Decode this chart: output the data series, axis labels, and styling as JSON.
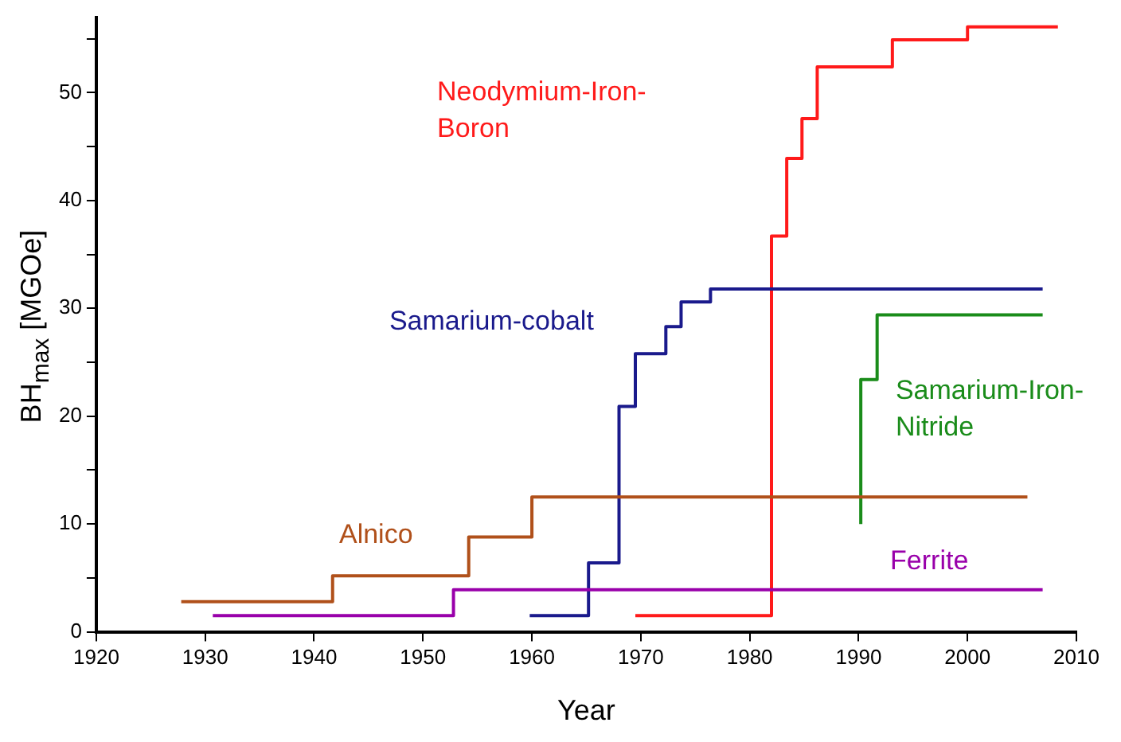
{
  "chart_data": {
    "type": "step",
    "xlabel": "Year",
    "ylabel": "BH$_{max}$ [MGOe]",
    "xlim": [
      1920,
      2010
    ],
    "ylim": [
      0,
      57
    ],
    "xticks": [
      1920,
      1930,
      1940,
      1950,
      1960,
      1970,
      1980,
      1990,
      2000,
      2010
    ],
    "yticks": [
      0,
      {
        "value": 5,
        "label": null
      },
      10,
      {
        "value": 15,
        "label": null
      },
      20,
      {
        "value": 25,
        "label": null
      },
      30,
      {
        "value": 35,
        "label": null
      },
      40,
      {
        "value": 45,
        "label": null
      },
      50,
      {
        "value": 55,
        "label": null
      }
    ],
    "grid": false,
    "legend": false,
    "marker": "none",
    "line_style": "solid",
    "series": [
      {
        "name": "Alnico",
        "color": "#b0501a",
        "x": [
          1927.8,
          1941.7,
          1954.2,
          1960,
          2005.5
        ],
        "values": [
          2.8,
          5.2,
          8.8,
          12.5,
          12.5
        ]
      },
      {
        "name": "Ferrite",
        "color": "#9900aa",
        "x": [
          1930.7,
          1952.8,
          2006.9
        ],
        "values": [
          1.5,
          3.9,
          3.9
        ]
      },
      {
        "name": "Samarium-cobalt",
        "color": "#1a1a8c",
        "x": [
          1959.8,
          1965.2,
          1968,
          1969.5,
          1972.3,
          1973.7,
          1976.4,
          2006.9
        ],
        "values": [
          1.5,
          6.4,
          20.9,
          25.8,
          28.3,
          30.6,
          31.8,
          31.8
        ]
      },
      {
        "name": "Neodymium-Iron-Boron",
        "color": "#ff1a1a",
        "x": [
          1969.5,
          1982,
          1983.4,
          1984.8,
          1986.2,
          1993.1,
          2000,
          2008.3
        ],
        "values": [
          1.5,
          36.7,
          43.9,
          47.6,
          52.4,
          54.9,
          56.1,
          56.1
        ]
      },
      {
        "name": "Samarium-Iron-Nitride",
        "color": "#1a8c1a",
        "x": [
          1990.2,
          1990.2,
          1991.7,
          2006.9
        ],
        "values": [
          10,
          23.4,
          29.4,
          29.4
        ]
      }
    ]
  }
}
